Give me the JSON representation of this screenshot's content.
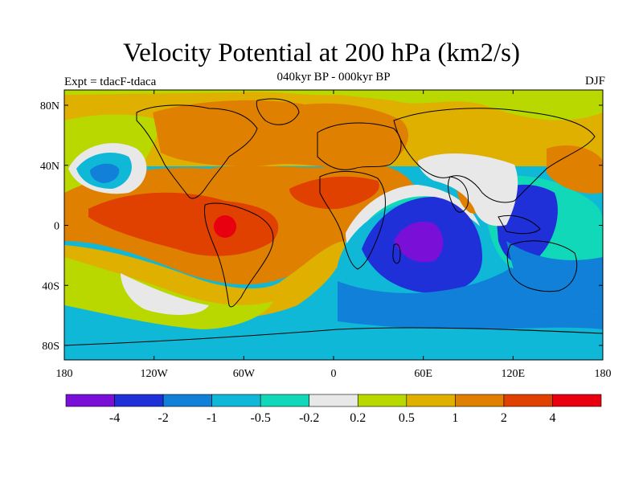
{
  "title": "Velocity Potential at 200 hPa (km2/s)",
  "subtitle": "040kyr BP - 000kyr BP",
  "left_label": "Expt = tdacF-tdaca",
  "right_label": "DJF",
  "axes": {
    "lat_ticks": [
      "80N",
      "40N",
      "0",
      "40S",
      "80S"
    ],
    "lon_ticks": [
      "180",
      "120W",
      "60W",
      "0",
      "60E",
      "120E",
      "180"
    ]
  },
  "colorbar": {
    "colors": [
      "#7a10d8",
      "#2030d8",
      "#1080d8",
      "#10b8d8",
      "#10d8b8",
      "#e8e8e8",
      "#b8d800",
      "#e0b000",
      "#e08000",
      "#e04000",
      "#e80010"
    ],
    "labels": [
      "-4",
      "-2",
      "-1",
      "-0.5",
      "-0.2",
      "0.2",
      "0.5",
      "1",
      "2",
      "4"
    ]
  },
  "colors": {
    "outline": "#000000",
    "coast": "#000000"
  }
}
